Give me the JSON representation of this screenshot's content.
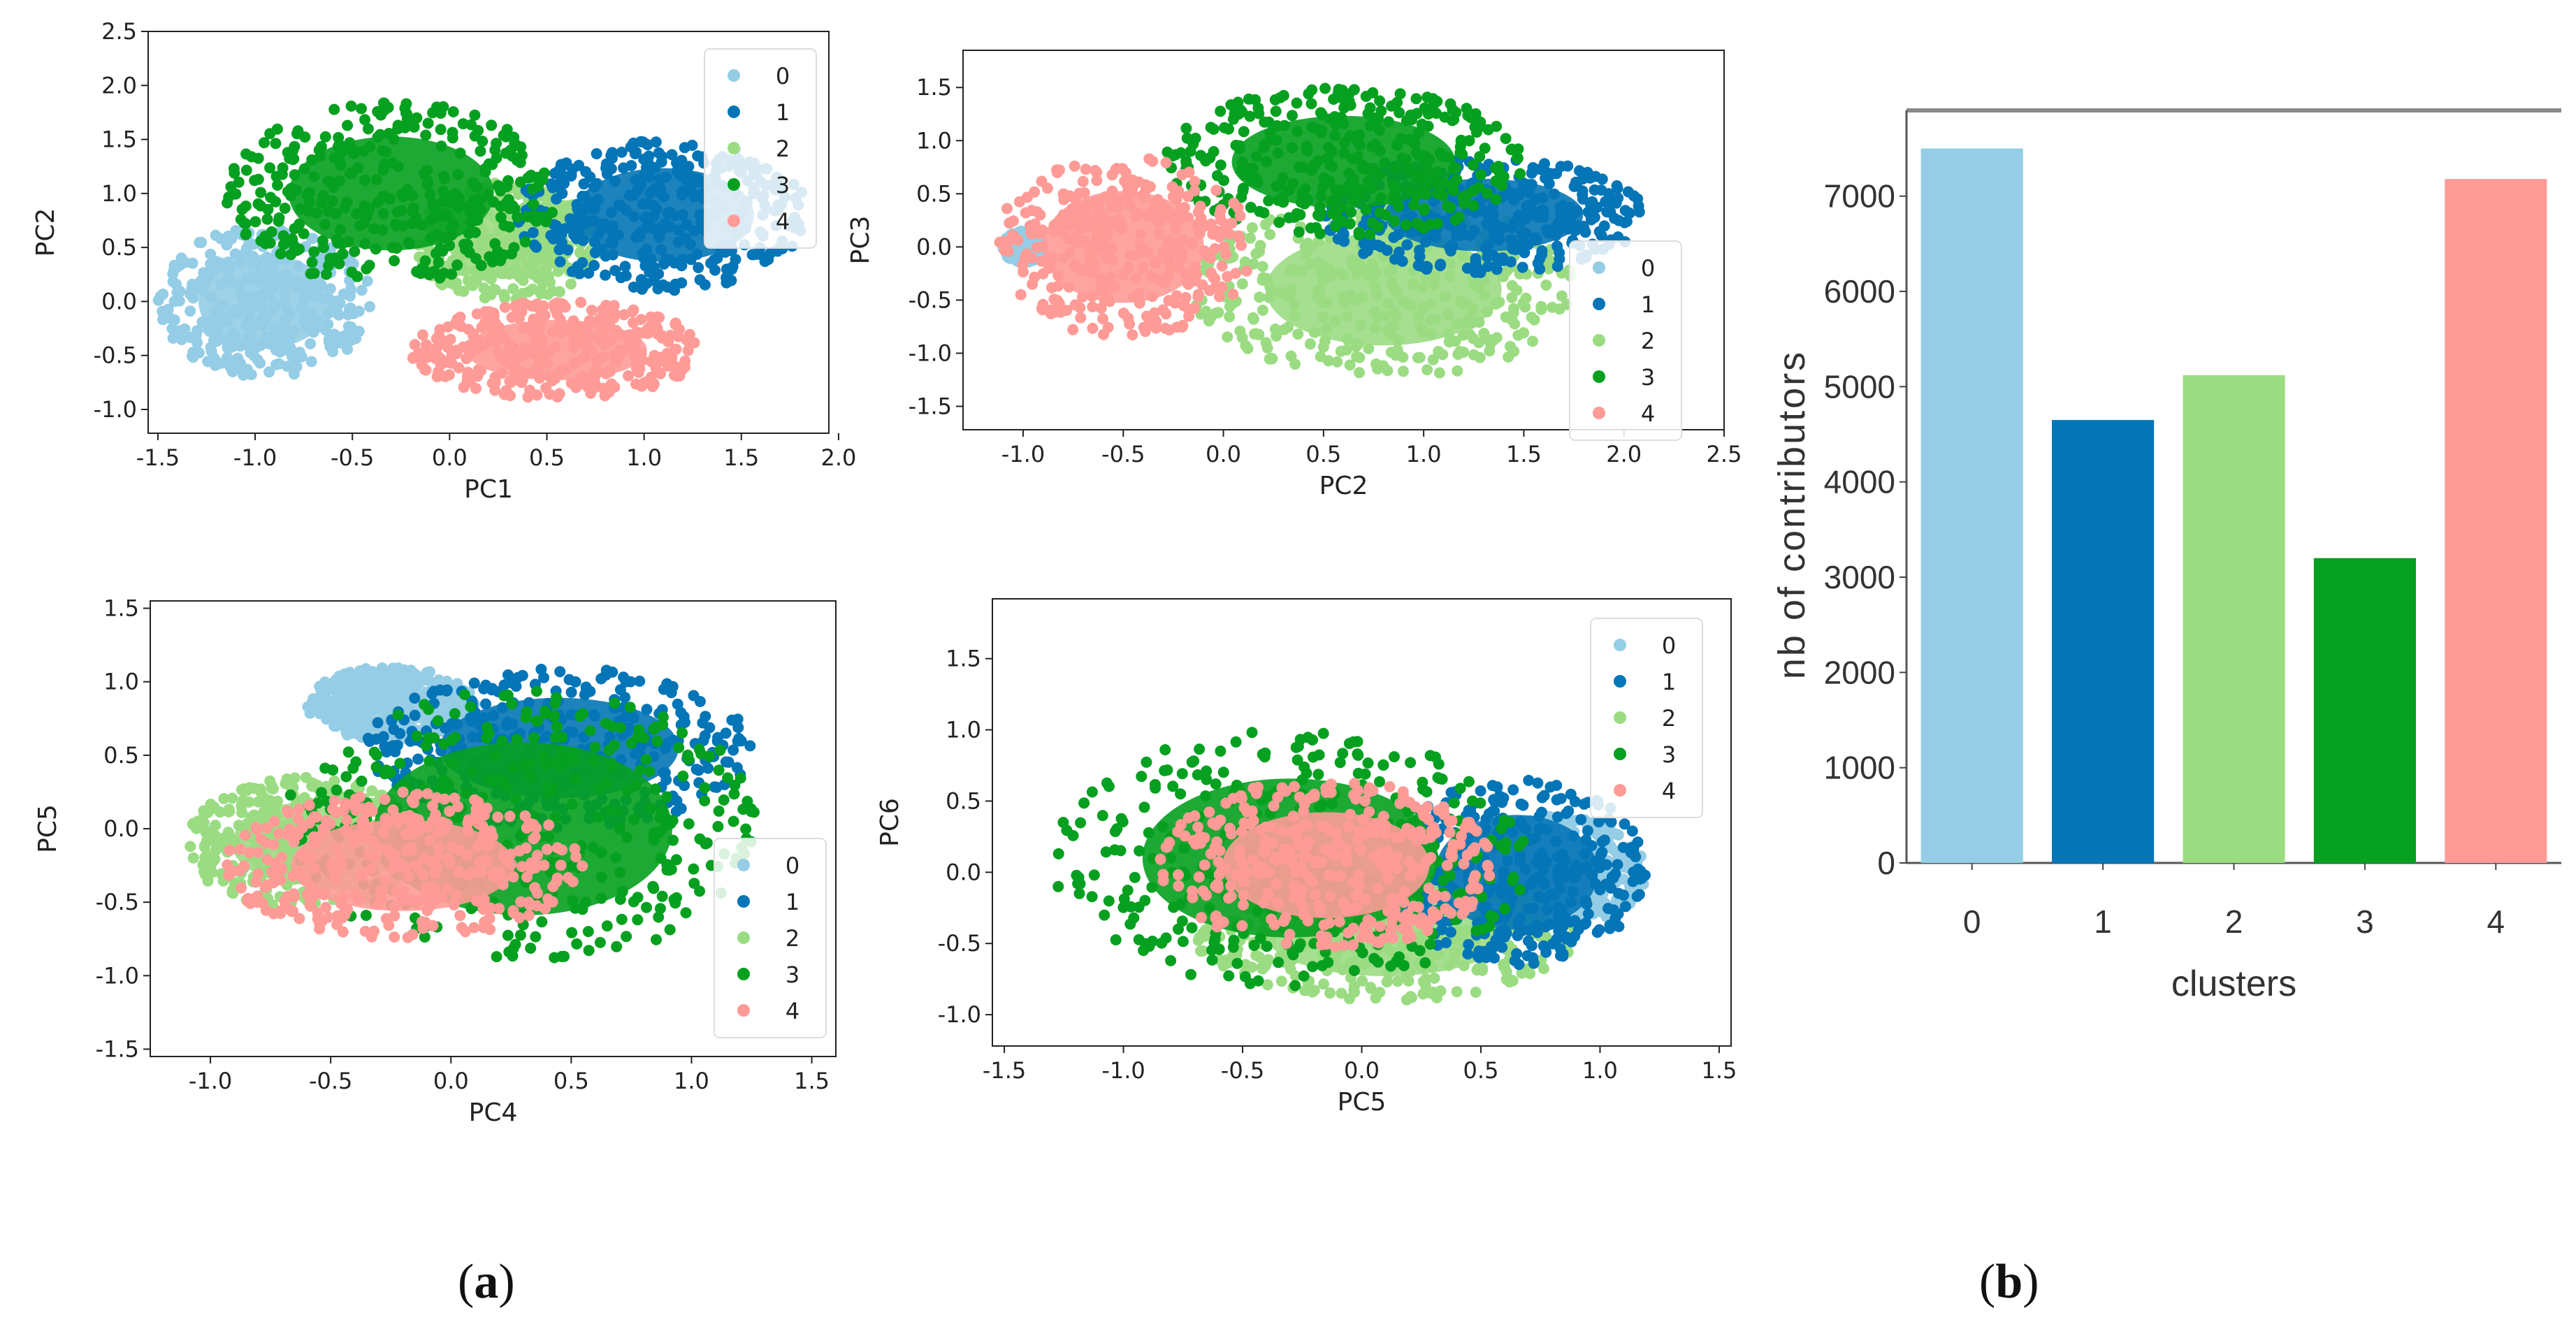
{
  "colors": {
    "c0": "#94cde5",
    "c1": "#0475b6",
    "c2": "#9bdc83",
    "c3": "#05a01f",
    "c4": "#fe9b97"
  },
  "legend_labels": [
    "0",
    "1",
    "2",
    "3",
    "4"
  ],
  "captions": {
    "a_open": "(",
    "a_letter": "a",
    "a_close": ")",
    "b_open": "(",
    "b_letter": "b",
    "b_close": ")"
  },
  "chart_data": [
    {
      "type": "scatter",
      "id": "pc1-pc2",
      "xlabel": "PC1",
      "ylabel": "PC2",
      "xlim": [
        -1.55,
        1.95
      ],
      "ylim": [
        -1.22,
        2.5
      ],
      "xticks": [
        "-1.5",
        "-1.0",
        "-0.5",
        "0.0",
        "0.5",
        "1.0",
        "1.5",
        "2.0"
      ],
      "yticks": [
        "-1.0",
        "-0.5",
        "0.0",
        "0.5",
        "1.0",
        "1.5",
        "2.0",
        "2.5"
      ],
      "legend": "top-right",
      "series": [
        {
          "name": "0",
          "cx": -0.95,
          "cy": 0.0,
          "rx": 0.55,
          "ry": 0.7
        },
        {
          "name": "1",
          "cx": 1.1,
          "cy": 0.8,
          "rx": 0.75,
          "ry": 0.7
        },
        {
          "name": "2",
          "cx": 0.3,
          "cy": 0.55,
          "rx": 0.5,
          "ry": 0.55
        },
        {
          "name": "3",
          "cx": -0.3,
          "cy": 1.0,
          "rx": 0.85,
          "ry": 0.85
        },
        {
          "name": "4",
          "cx": 0.55,
          "cy": -0.45,
          "rx": 0.75,
          "ry": 0.45
        }
      ]
    },
    {
      "type": "scatter",
      "id": "pc2-pc3",
      "xlabel": "PC2",
      "ylabel": "PC3",
      "xlim": [
        -1.3,
        2.5
      ],
      "ylim": [
        -1.72,
        1.85
      ],
      "xticks": [
        "-1.0",
        "-0.5",
        "0.0",
        "0.5",
        "1.0",
        "1.5",
        "2.0",
        "2.5"
      ],
      "yticks": [
        "-1.5",
        "-1.0",
        "-0.5",
        "0.0",
        "0.5",
        "1.0",
        "1.5"
      ],
      "legend": "center-right",
      "series": [
        {
          "name": "0",
          "cx": -1.0,
          "cy": 0.0,
          "rx": 0.1,
          "ry": 0.15
        },
        {
          "name": "1",
          "cx": 1.3,
          "cy": 0.3,
          "rx": 0.8,
          "ry": 0.55
        },
        {
          "name": "2",
          "cx": 0.8,
          "cy": -0.4,
          "rx": 0.95,
          "ry": 0.85
        },
        {
          "name": "3",
          "cx": 0.6,
          "cy": 0.8,
          "rx": 0.9,
          "ry": 0.7
        },
        {
          "name": "4",
          "cx": -0.5,
          "cy": 0.0,
          "rx": 0.65,
          "ry": 0.85
        }
      ]
    },
    {
      "type": "scatter",
      "id": "pc4-pc5",
      "xlabel": "PC4",
      "ylabel": "PC5",
      "xlim": [
        -1.25,
        1.6
      ],
      "ylim": [
        -1.55,
        1.55
      ],
      "xticks": [
        "-1.0",
        "-0.5",
        "0.0",
        "0.5",
        "1.0",
        "1.5"
      ],
      "yticks": [
        "-1.5",
        "-1.0",
        "-0.5",
        "0.0",
        "0.5",
        "1.0",
        "1.5"
      ],
      "legend": "bottom-right",
      "series": [
        {
          "name": "0",
          "cx": -0.25,
          "cy": 0.85,
          "rx": 0.35,
          "ry": 0.25
        },
        {
          "name": "1",
          "cx": 0.45,
          "cy": 0.55,
          "rx": 0.8,
          "ry": 0.55
        },
        {
          "name": "2",
          "cx": -0.6,
          "cy": -0.1,
          "rx": 0.5,
          "ry": 0.45
        },
        {
          "name": "3",
          "cx": 0.3,
          "cy": 0.0,
          "rx": 1.0,
          "ry": 0.95
        },
        {
          "name": "4",
          "cx": -0.2,
          "cy": -0.25,
          "rx": 0.75,
          "ry": 0.5
        }
      ]
    },
    {
      "type": "scatter",
      "id": "pc5-pc6",
      "xlabel": "PC5",
      "ylabel": "PC6",
      "xlim": [
        -1.55,
        1.55
      ],
      "ylim": [
        -1.22,
        1.92
      ],
      "xticks": [
        "-1.5",
        "-1.0",
        "-0.5",
        "0.0",
        "0.5",
        "1.0",
        "1.5"
      ],
      "yticks": [
        "-1.0",
        "-0.5",
        "0.0",
        "0.5",
        "1.0",
        "1.5"
      ],
      "legend": "top-right",
      "series": [
        {
          "name": "0",
          "cx": 0.8,
          "cy": 0.0,
          "rx": 0.4,
          "ry": 0.4
        },
        {
          "name": "1",
          "cx": 0.65,
          "cy": 0.0,
          "rx": 0.55,
          "ry": 0.65
        },
        {
          "name": "2",
          "cx": 0.1,
          "cy": -0.45,
          "rx": 0.8,
          "ry": 0.45
        },
        {
          "name": "3",
          "cx": -0.3,
          "cy": 0.1,
          "rx": 1.0,
          "ry": 0.9
        },
        {
          "name": "4",
          "cx": -0.15,
          "cy": 0.05,
          "rx": 0.7,
          "ry": 0.6
        }
      ]
    },
    {
      "type": "bar",
      "id": "clusters-bar",
      "categories": [
        "0",
        "1",
        "2",
        "3",
        "4"
      ],
      "values": [
        7500,
        4650,
        5120,
        3200,
        7180
      ],
      "xlabel": "clusters",
      "ylabel": "nb of contributors",
      "ylim": [
        0,
        7900
      ],
      "yticks": [
        "0",
        "1000",
        "2000",
        "3000",
        "4000",
        "5000",
        "6000",
        "7000"
      ]
    }
  ]
}
